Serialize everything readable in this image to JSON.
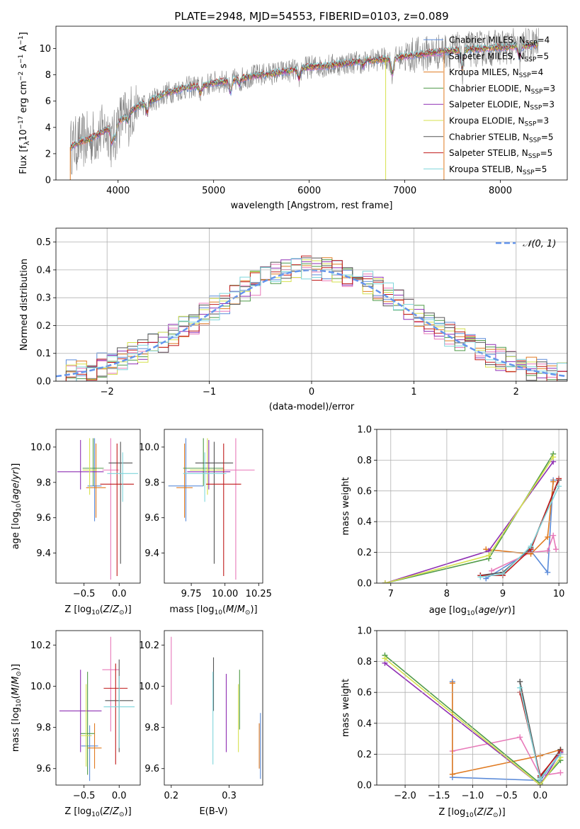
{
  "colors": {
    "chabrier_miles": "#5b8bd9",
    "salpeter_miles": "#e879b9",
    "kroupa_miles": "#e07b22",
    "chabrier_elodie": "#4f9a48",
    "salpeter_elodie": "#8e2fb3",
    "kroupa_elodie": "#d6e14d",
    "chabrier_stelib": "#555555",
    "salpeter_stelib": "#c01a1a",
    "kroupa_stelib": "#7fd6dc",
    "data_spectrum": "#808080",
    "grid": "#b0b0b0",
    "gaussian": "#6495ed"
  },
  "chart_data": [
    {
      "id": "spectrum",
      "type": "line",
      "title": "PLATE=2948, MJD=54553, FIBERID=0103, z=0.089",
      "xlabel": "wavelength [Angstrom, rest frame]",
      "ylabel": "Flux [f_λ 10^-17 erg cm^-2 s^-1 A^-1]",
      "xlim": [
        3350,
        8700
      ],
      "ylim": [
        0,
        11.7
      ],
      "xticks": [
        4000,
        5000,
        6000,
        7000,
        8000
      ],
      "yticks": [
        0,
        2,
        4,
        6,
        8,
        10
      ],
      "grid": false,
      "legend_position": "upper-right",
      "model_continuum": {
        "x": [
          3500,
          3600,
          3700,
          3800,
          3900,
          4000,
          4100,
          4200,
          4300,
          4400,
          4500,
          4600,
          4700,
          4800,
          4900,
          5000,
          5200,
          5400,
          5600,
          5800,
          6000,
          6200,
          6400,
          6600,
          6800,
          7000,
          7200,
          7400,
          7600,
          7800,
          8000,
          8200,
          8400
        ],
        "y": [
          2.5,
          2.9,
          3.1,
          3.5,
          3.9,
          4.4,
          5.0,
          5.6,
          5.9,
          6.2,
          6.6,
          6.8,
          7.0,
          7.1,
          7.2,
          7.4,
          7.6,
          7.9,
          8.1,
          8.3,
          8.6,
          8.7,
          8.9,
          9.1,
          9.2,
          9.4,
          9.6,
          9.8,
          9.9,
          10.0,
          10.1,
          10.2,
          10.3
        ]
      },
      "legend": [
        {
          "label": "Chabrier MILES, N",
          "sub": "SSP",
          "tail": "=4",
          "color_key": "chabrier_miles"
        },
        {
          "label": "Salpeter MILES, N",
          "sub": "SSP",
          "tail": "=5",
          "color_key": "salpeter_miles"
        },
        {
          "label": "Kroupa MILES, N",
          "sub": "SSP",
          "tail": "=4",
          "color_key": "kroupa_miles"
        },
        {
          "label": "Chabrier ELODIE, N",
          "sub": "SSP",
          "tail": "=3",
          "color_key": "chabrier_elodie"
        },
        {
          "label": "Salpeter ELODIE, N",
          "sub": "SSP",
          "tail": "=3",
          "color_key": "salpeter_elodie"
        },
        {
          "label": "Kroupa ELODIE, N",
          "sub": "SSP",
          "tail": "=3",
          "color_key": "kroupa_elodie"
        },
        {
          "label": "Chabrier STELIB, N",
          "sub": "SSP",
          "tail": "=5",
          "color_key": "chabrier_stelib"
        },
        {
          "label": "Salpeter STELIB, N",
          "sub": "SSP",
          "tail": "=5",
          "color_key": "salpeter_stelib"
        },
        {
          "label": "Kroupa STELIB, N",
          "sub": "SSP",
          "tail": "=5",
          "color_key": "kroupa_stelib"
        }
      ]
    },
    {
      "id": "residuals",
      "type": "line",
      "xlabel": "(data-model)/error",
      "ylabel": "Normed distribution",
      "xlim": [
        -2.5,
        2.5
      ],
      "ylim": [
        0,
        0.55
      ],
      "xticks": [
        -2,
        -1,
        0,
        1,
        2
      ],
      "xticklabels": [
        "−2",
        "−1",
        "0",
        "1",
        "2"
      ],
      "yticks": [
        0.0,
        0.1,
        0.2,
        0.3,
        0.4,
        0.5
      ],
      "yticklabels": [
        "0.0",
        "0.1",
        "0.2",
        "0.3",
        "0.4",
        "0.5"
      ],
      "grid": true,
      "legend": {
        "label": "𝒩(0, 1)",
        "position": "upper-right"
      },
      "bin_width": 0.1
    },
    {
      "id": "age-vs-Z",
      "type": "scatter",
      "xlabel": "Z [log10(Z/Z⊙)]",
      "ylabel": "age [log10(age/yr)]",
      "xlim": [
        -0.9,
        0.3
      ],
      "ylim": [
        9.23,
        10.1
      ],
      "xticks": [
        -0.5,
        0.0
      ],
      "xticklabels": [
        "−0.5",
        "0.0"
      ],
      "yticks": [
        9.4,
        9.6,
        9.8,
        10.0
      ],
      "yticklabels": [
        "9.4",
        "9.6",
        "9.8",
        "10.0"
      ],
      "points": [
        {
          "series": "chabrier_miles",
          "x": -0.35,
          "y": 9.78,
          "xerr": 0.1,
          "yerr": [
            0.2,
            0.27
          ]
        },
        {
          "series": "salpeter_miles",
          "x": -0.12,
          "y": 9.87,
          "xerr": 0.12,
          "yerr": [
            0.62,
            0.18
          ]
        },
        {
          "series": "kroupa_miles",
          "x": -0.33,
          "y": 9.77,
          "xerr": 0.14,
          "yerr": [
            0.17,
            0.25
          ]
        },
        {
          "series": "chabrier_elodie",
          "x": -0.37,
          "y": 9.88,
          "xerr": 0.15,
          "yerr": [
            0.1,
            0.17
          ]
        },
        {
          "series": "salpeter_elodie",
          "x": -0.55,
          "y": 9.86,
          "xerr": 0.33,
          "yerr": [
            0.1,
            0.18
          ]
        },
        {
          "series": "kroupa_elodie",
          "x": -0.42,
          "y": 9.87,
          "xerr": 0.1,
          "yerr": [
            0.14,
            0.18
          ]
        },
        {
          "series": "chabrier_stelib",
          "x": 0.02,
          "y": 9.91,
          "xerr": 0.17,
          "yerr": [
            0.57,
            0.12
          ]
        },
        {
          "series": "salpeter_stelib",
          "x": -0.03,
          "y": 9.79,
          "xerr": 0.24,
          "yerr": [
            0.52,
            0.23
          ]
        },
        {
          "series": "kroupa_stelib",
          "x": 0.05,
          "y": 9.85,
          "xerr": 0.22,
          "yerr": [
            0.16,
            0.12
          ]
        }
      ]
    },
    {
      "id": "age-vs-mass",
      "type": "scatter",
      "xlabel": "mass [log10(M/M⊙)]",
      "ylabel": "",
      "xlim": [
        9.55,
        10.28
      ],
      "ylim": [
        9.23,
        10.1
      ],
      "xticks": [
        9.75,
        10.0,
        10.25
      ],
      "xticklabels": [
        "9.75",
        "10.00",
        "10.25"
      ],
      "yticks": [
        9.4,
        9.6,
        9.8,
        10.0
      ],
      "yticklabels": [
        "9.4",
        "9.6",
        "9.8",
        "10.0"
      ],
      "points": [
        {
          "series": "chabrier_miles",
          "x": 9.71,
          "y": 9.78,
          "xerr": 0.13,
          "yerr": [
            0.2,
            0.27
          ]
        },
        {
          "series": "salpeter_miles",
          "x": 10.08,
          "y": 9.87,
          "xerr": 0.14,
          "yerr": [
            0.62,
            0.18
          ]
        },
        {
          "series": "kroupa_miles",
          "x": 9.7,
          "y": 9.77,
          "xerr": 0.06,
          "yerr": [
            0.17,
            0.25
          ]
        },
        {
          "series": "chabrier_elodie",
          "x": 9.84,
          "y": 9.88,
          "xerr": 0.15,
          "yerr": [
            0.1,
            0.17
          ]
        },
        {
          "series": "salpeter_elodie",
          "x": 9.88,
          "y": 9.86,
          "xerr": 0.16,
          "yerr": [
            0.1,
            0.18
          ]
        },
        {
          "series": "kroupa_elodie",
          "x": 9.87,
          "y": 9.87,
          "xerr": 0.13,
          "yerr": [
            0.14,
            0.18
          ]
        },
        {
          "series": "chabrier_stelib",
          "x": 9.92,
          "y": 9.91,
          "xerr": 0.14,
          "yerr": [
            0.57,
            0.12
          ]
        },
        {
          "series": "salpeter_stelib",
          "x": 9.99,
          "y": 9.79,
          "xerr": 0.13,
          "yerr": [
            0.52,
            0.23
          ]
        },
        {
          "series": "kroupa_stelib",
          "x": 9.85,
          "y": 9.85,
          "xerr": 0.16,
          "yerr": [
            0.16,
            0.12
          ]
        }
      ]
    },
    {
      "id": "weight-vs-age",
      "type": "line",
      "xlabel": "age [log10(age/yr)]",
      "ylabel": "mass weight",
      "xlim": [
        6.75,
        10.15
      ],
      "ylim": [
        0,
        1.0
      ],
      "xticks": [
        7,
        8,
        9,
        10
      ],
      "xticklabels": [
        "7",
        "8",
        "9",
        "10"
      ],
      "yticks": [
        0.0,
        0.2,
        0.4,
        0.6,
        0.8,
        1.0
      ],
      "yticklabels": [
        "0.0",
        "0.2",
        "0.4",
        "0.6",
        "0.8",
        "1.0"
      ],
      "grid": true,
      "series": [
        {
          "key": "chabrier_miles",
          "x": [
            8.7,
            9.5,
            9.8,
            9.9
          ],
          "y": [
            0.03,
            0.21,
            0.07,
            0.67
          ]
        },
        {
          "key": "salpeter_miles",
          "x": [
            8.8,
            9.5,
            9.8,
            9.9,
            9.95
          ],
          "y": [
            0.08,
            0.2,
            0.21,
            0.31,
            0.22
          ]
        },
        {
          "key": "kroupa_miles",
          "x": [
            8.7,
            9.5,
            9.8,
            9.9
          ],
          "y": [
            0.22,
            0.19,
            0.3,
            0.66
          ]
        },
        {
          "key": "chabrier_elodie",
          "x": [
            6.9,
            8.75,
            9.9
          ],
          "y": [
            0.0,
            0.16,
            0.84
          ]
        },
        {
          "key": "salpeter_elodie",
          "x": [
            6.9,
            8.75,
            9.9
          ],
          "y": [
            0.0,
            0.21,
            0.79
          ]
        },
        {
          "key": "kroupa_elodie",
          "x": [
            6.9,
            8.75,
            9.9
          ],
          "y": [
            0.0,
            0.18,
            0.82
          ]
        },
        {
          "key": "chabrier_stelib",
          "x": [
            8.6,
            9.0,
            9.5,
            10.0
          ],
          "y": [
            0.05,
            0.07,
            0.23,
            0.67
          ]
        },
        {
          "key": "salpeter_stelib",
          "x": [
            8.6,
            9.0,
            9.5,
            10.0
          ],
          "y": [
            0.05,
            0.05,
            0.22,
            0.68
          ]
        },
        {
          "key": "kroupa_stelib",
          "x": [
            8.6,
            9.0,
            9.5,
            10.0
          ],
          "y": [
            0.04,
            0.06,
            0.24,
            0.63
          ]
        }
      ]
    },
    {
      "id": "mass-vs-Z",
      "type": "scatter",
      "xlabel": "Z [log10(Z/Z⊙)]",
      "ylabel": "mass [log10(M/M⊙)]",
      "xlim": [
        -0.9,
        0.3
      ],
      "ylim": [
        9.52,
        10.27
      ],
      "xticks": [
        -0.5,
        0.0
      ],
      "xticklabels": [
        "−0.5",
        "0.0"
      ],
      "yticks": [
        9.6,
        9.8,
        10.0,
        10.2
      ],
      "yticklabels": [
        "9.6",
        "9.8",
        "10.0",
        "10.2"
      ],
      "points": [
        {
          "series": "chabrier_miles",
          "x": -0.42,
          "y": 9.71,
          "xerr": 0.12,
          "yerr": [
            0.17,
            0.1
          ]
        },
        {
          "series": "salpeter_miles",
          "x": -0.12,
          "y": 10.08,
          "xerr": 0.12,
          "yerr": [
            0.3,
            0.16
          ]
        },
        {
          "series": "kroupa_miles",
          "x": -0.35,
          "y": 9.7,
          "xerr": 0.1,
          "yerr": [
            0.1,
            0.12
          ]
        },
        {
          "series": "chabrier_elodie",
          "x": -0.45,
          "y": 9.77,
          "xerr": 0.1,
          "yerr": [
            0.2,
            0.3
          ]
        },
        {
          "series": "salpeter_elodie",
          "x": -0.55,
          "y": 9.88,
          "xerr": 0.3,
          "yerr": [
            0.2,
            0.2
          ]
        },
        {
          "series": "kroupa_elodie",
          "x": -0.47,
          "y": 9.76,
          "xerr": 0.08,
          "yerr": [
            0.15,
            0.25
          ]
        },
        {
          "series": "chabrier_stelib",
          "x": 0.0,
          "y": 9.93,
          "xerr": 0.2,
          "yerr": [
            0.25,
            0.2
          ]
        },
        {
          "series": "salpeter_stelib",
          "x": -0.05,
          "y": 9.99,
          "xerr": 0.17,
          "yerr": [
            0.37,
            0.12
          ]
        },
        {
          "series": "kroupa_stelib",
          "x": 0.0,
          "y": 9.9,
          "xerr": 0.22,
          "yerr": [
            0.2,
            0.15
          ]
        }
      ]
    },
    {
      "id": "mass-vs-ebv",
      "type": "scatter",
      "xlabel": "E(B-V)",
      "ylabel": "",
      "xlim": [
        0.188,
        0.358
      ],
      "ylim": [
        9.52,
        10.27
      ],
      "xticks": [
        0.2,
        0.3
      ],
      "xticklabels": [
        "0.2",
        "0.3"
      ],
      "yticks": [
        9.6,
        9.8,
        10.0,
        10.2
      ],
      "yticklabels": [
        "9.6",
        "9.8",
        "10.0",
        "10.2"
      ],
      "points": [
        {
          "series": "salpeter_miles",
          "x": 0.2,
          "y": 10.08,
          "yerr": [
            0.17,
            0.16
          ]
        },
        {
          "series": "chabrier_stelib",
          "x": 0.273,
          "y": 10.0,
          "yerr": [
            0.12,
            0.14
          ]
        },
        {
          "series": "kroupa_stelib",
          "x": 0.272,
          "y": 9.9,
          "yerr": [
            0.28,
            0.17
          ]
        },
        {
          "series": "salpeter_elodie",
          "x": 0.295,
          "y": 9.88,
          "yerr": [
            0.2,
            0.18
          ]
        },
        {
          "series": "chabrier_elodie",
          "x": 0.318,
          "y": 9.97,
          "yerr": [
            0.18,
            0.11
          ]
        },
        {
          "series": "kroupa_elodie",
          "x": 0.316,
          "y": 9.83,
          "yerr": [
            0.15,
            0.18
          ]
        },
        {
          "series": "kroupa_miles",
          "x": 0.352,
          "y": 9.7,
          "yerr": [
            0.1,
            0.12
          ]
        },
        {
          "series": "chabrier_miles",
          "x": 0.354,
          "y": 9.73,
          "yerr": [
            0.18,
            0.14
          ]
        }
      ]
    },
    {
      "id": "weight-vs-Z",
      "type": "line",
      "xlabel": "Z [log10(Z/Z⊙)]",
      "ylabel": "mass weight",
      "xlim": [
        -2.42,
        0.4
      ],
      "ylim": [
        0,
        1.0
      ],
      "xticks": [
        -2.0,
        -1.5,
        -1.0,
        -0.5,
        0.0
      ],
      "xticklabels": [
        "−2.0",
        "−1.5",
        "−1.0",
        "−0.5",
        "0.0"
      ],
      "yticks": [
        0.0,
        0.2,
        0.4,
        0.6,
        0.8,
        1.0
      ],
      "yticklabels": [
        "0.0",
        "0.2",
        "0.4",
        "0.6",
        "0.8",
        "1.0"
      ],
      "grid": true,
      "series": [
        {
          "key": "chabrier_miles",
          "x": [
            -1.3,
            -1.3,
            0.0,
            0.3
          ],
          "y": [
            0.67,
            0.05,
            0.03,
            0.21
          ]
        },
        {
          "key": "salpeter_miles",
          "x": [
            -1.3,
            -0.3,
            0.0,
            0.3
          ],
          "y": [
            0.22,
            0.31,
            0.06,
            0.08
          ]
        },
        {
          "key": "kroupa_miles",
          "x": [
            -1.3,
            -1.3,
            0.0,
            0.3
          ],
          "y": [
            0.66,
            0.07,
            0.19,
            0.23
          ]
        },
        {
          "key": "chabrier_elodie",
          "x": [
            -2.3,
            0.0,
            0.3
          ],
          "y": [
            0.84,
            0.01,
            0.16
          ]
        },
        {
          "key": "salpeter_elodie",
          "x": [
            -2.3,
            0.0,
            0.3
          ],
          "y": [
            0.79,
            0.0,
            0.21
          ]
        },
        {
          "key": "kroupa_elodie",
          "x": [
            -2.3,
            0.0,
            0.3
          ],
          "y": [
            0.82,
            0.0,
            0.18
          ]
        },
        {
          "key": "chabrier_stelib",
          "x": [
            -0.3,
            0.0,
            0.3
          ],
          "y": [
            0.67,
            0.05,
            0.23
          ]
        },
        {
          "key": "salpeter_stelib",
          "x": [
            -0.3,
            0.0,
            0.3
          ],
          "y": [
            0.6,
            0.06,
            0.22
          ]
        },
        {
          "key": "kroupa_stelib",
          "x": [
            -0.3,
            0.0,
            0.3
          ],
          "y": [
            0.63,
            0.04,
            0.2
          ]
        }
      ]
    }
  ]
}
